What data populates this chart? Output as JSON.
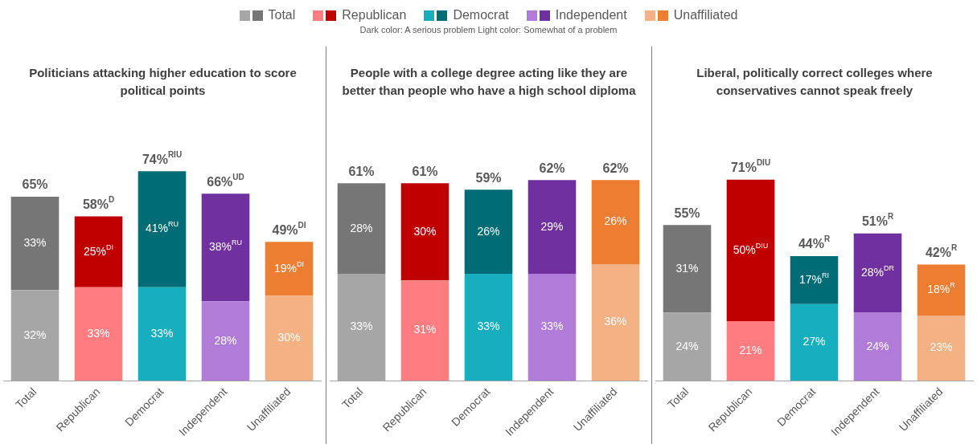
{
  "chart_data": [
    {
      "type": "bar",
      "stacked": true,
      "title": "Politicians attacking higher education to score political points",
      "annotations": [
        "Dark color: A serious problem Light color: Somewhat of a problem"
      ],
      "categories": [
        "Total",
        "Republican",
        "Democrat",
        "Independent",
        "Unaffiliated"
      ],
      "series": [
        {
          "colors": [
            "#a6a6a6",
            "#ff7c80",
            "#17aebf",
            "#b07cd8",
            "#f4b183"
          ],
          "values": [
            32,
            33,
            33,
            28,
            30
          ],
          "value_labels": [
            "32%",
            "33%",
            "33%",
            "28%",
            "30%"
          ]
        },
        {
          "colors": [
            "#767676",
            "#c00000",
            "#006c75",
            "#7030a0",
            "#ed7d31"
          ],
          "values": [
            33,
            25,
            41,
            38,
            19
          ],
          "value_labels": [
            "33%",
            "25%$^{DI}$",
            "41%$^{RU}$",
            "38%$^{RU}$",
            "19%$^{DI}$"
          ]
        }
      ],
      "totals": [
        "65%",
        "58%$^{D}$",
        "74%$^{RIU}$",
        "66%$^{UD}$",
        "49%$^{DI}$"
      ]
    },
    {
      "type": "bar",
      "stacked": true,
      "title": "People with a college degree acting like they are better than people who have a high school diploma",
      "categories": [
        "Total",
        "Republican",
        "Democrat",
        "Independent",
        "Unaffiliated"
      ],
      "series": [
        {
          "colors": [
            "#a6a6a6",
            "#ff7c80",
            "#17aebf",
            "#b07cd8",
            "#f4b183"
          ],
          "values": [
            33,
            31,
            33,
            33,
            36
          ],
          "value_labels": [
            "33%",
            "31%",
            "33%",
            "33%",
            "36%"
          ]
        },
        {
          "colors": [
            "#767676",
            "#c00000",
            "#006c75",
            "#7030a0",
            "#ed7d31"
          ],
          "values": [
            28,
            30,
            26,
            29,
            26
          ],
          "value_labels": [
            "28%",
            "30%",
            "26%",
            "29%",
            "26%"
          ]
        }
      ],
      "totals": [
        "61%",
        "61%",
        "59%",
        "62%",
        "62%"
      ]
    },
    {
      "type": "bar",
      "stacked": true,
      "title": "Liberal, politically correct colleges where conservatives cannot speak freely",
      "categories": [
        "Total",
        "Republican",
        "Democrat",
        "Independent",
        "Unaffiliated"
      ],
      "series": [
        {
          "colors": [
            "#a6a6a6",
            "#ff7c80",
            "#17aebf",
            "#b07cd8",
            "#f4b183"
          ],
          "values": [
            24,
            21,
            27,
            24,
            23
          ],
          "value_labels": [
            "24%",
            "21%",
            "27%",
            "24%",
            "23%"
          ]
        },
        {
          "colors": [
            "#767676",
            "#c00000",
            "#006c75",
            "#7030a0",
            "#ed7d31"
          ],
          "values": [
            31,
            50,
            17,
            28,
            18
          ],
          "value_labels": [
            "31%",
            "50%$^{DIU}$",
            "17%$^{RI}$",
            "28%$^{DR}$",
            "18%$^{R}$"
          ]
        }
      ],
      "totals": [
        "55%",
        "71%$^{DIU}$",
        "44%$^{R}$",
        "51%$^{R}$",
        "42%$^{R}$"
      ]
    }
  ]
}
